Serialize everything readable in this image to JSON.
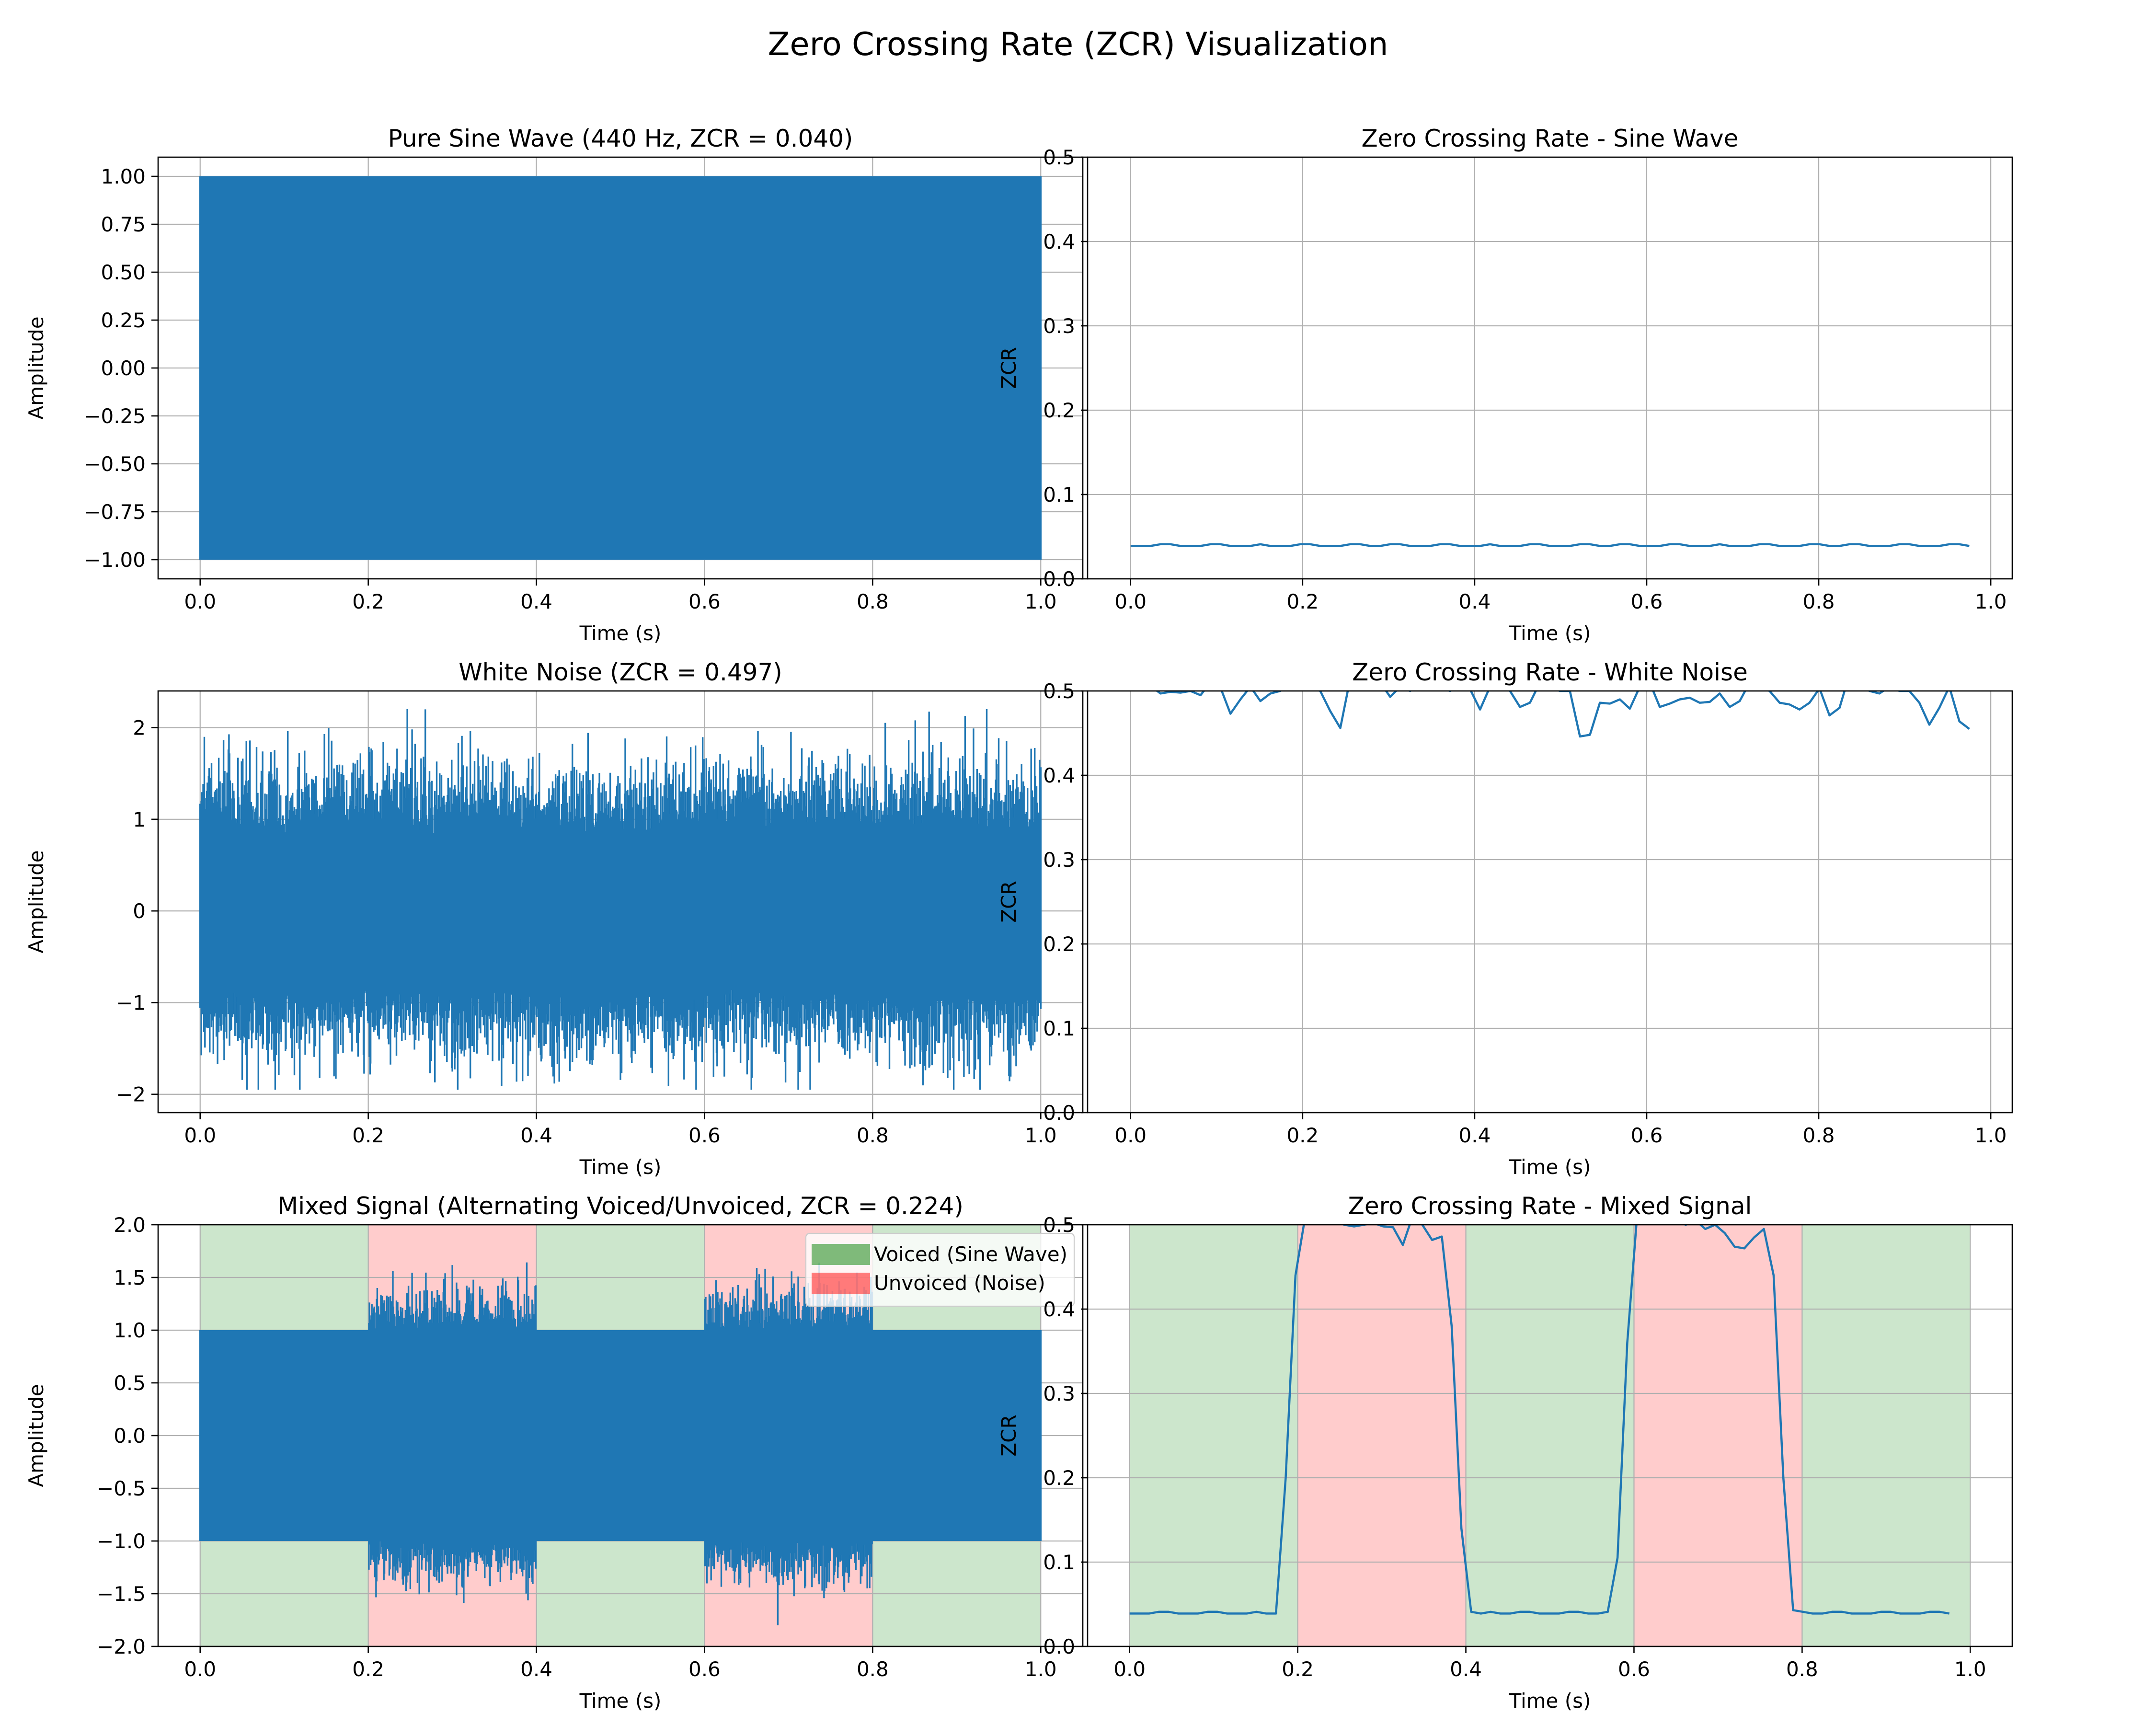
{
  "figure": {
    "title": "Zero Crossing Rate (ZCR) Visualization"
  },
  "colors": {
    "line": "#1f77b4",
    "voiced_band": "#008000",
    "unvoiced_band": "#ff0000",
    "grid": "#b0b0b0"
  },
  "chart_data": [
    {
      "id": "sine-wave",
      "type": "line",
      "title": "Pure Sine Wave (440 Hz, ZCR = 0.040)",
      "xlabel": "Time (s)",
      "ylabel": "Amplitude",
      "xlim": [
        -0.05,
        1.05
      ],
      "ylim": [
        -1.1,
        1.1
      ],
      "xticks": [
        0.0,
        0.2,
        0.4,
        0.6,
        0.8,
        1.0
      ],
      "xtick_labels": [
        "0.0",
        "0.2",
        "0.4",
        "0.6",
        "0.8",
        "1.0"
      ],
      "yticks": [
        1.0,
        0.75,
        0.5,
        0.25,
        0.0,
        -0.25,
        -0.5,
        -0.75,
        -1.0
      ],
      "ytick_labels": [
        "1.00",
        "0.75",
        "0.50",
        "0.25",
        "0.00",
        "−0.25",
        "−0.50",
        "−0.75",
        "−1.00"
      ],
      "grid": true,
      "signal": {
        "kind": "sine",
        "frequency_hz": 440,
        "amplitude": 1.0,
        "duration_s": 1.0
      },
      "series": [
        {
          "x": [
            0.0,
            1.0
          ],
          "y_min": -1.0,
          "y_max": 1.0
        }
      ]
    },
    {
      "id": "zcr-sine",
      "type": "line",
      "title": "Zero Crossing Rate - Sine Wave",
      "xlabel": "Time (s)",
      "ylabel": "ZCR",
      "xlim": [
        -0.05,
        1.025
      ],
      "ylim": [
        0.0,
        0.5
      ],
      "xticks": [
        0.0,
        0.2,
        0.4,
        0.6,
        0.8,
        1.0
      ],
      "xtick_labels": [
        "0.0",
        "0.2",
        "0.4",
        "0.6",
        "0.8",
        "1.0"
      ],
      "yticks": [
        0.0,
        0.1,
        0.2,
        0.3,
        0.4,
        0.5
      ],
      "ytick_labels": [
        "0.0",
        "0.1",
        "0.2",
        "0.3",
        "0.4",
        "0.5"
      ],
      "grid": true,
      "series": [
        {
          "x": [
            0.0,
            0.0116,
            0.0232,
            0.0348,
            0.0464,
            0.058,
            0.0696,
            0.0813,
            0.0929,
            0.1045,
            0.1161,
            0.1277,
            0.1393,
            0.1509,
            0.1625,
            0.1741,
            0.1857,
            0.1973,
            0.2089,
            0.2205,
            0.2322,
            0.2438,
            0.2554,
            0.267,
            0.2786,
            0.2902,
            0.3018,
            0.3134,
            0.325,
            0.3366,
            0.3482,
            0.3598,
            0.3714,
            0.3831,
            0.3947,
            0.4063,
            0.4179,
            0.4295,
            0.4411,
            0.4527,
            0.4643,
            0.4759,
            0.4875,
            0.4991,
            0.5107,
            0.5224,
            0.534,
            0.5456,
            0.5572,
            0.5688,
            0.5804,
            0.592,
            0.6036,
            0.6152,
            0.6268,
            0.6384,
            0.65,
            0.6616,
            0.6733,
            0.6849,
            0.6965,
            0.7081,
            0.7197,
            0.7313,
            0.7429,
            0.7545,
            0.7661,
            0.7777,
            0.7893,
            0.8009,
            0.8125,
            0.8242,
            0.8358,
            0.8474,
            0.859,
            0.8706,
            0.8822,
            0.8938,
            0.9054,
            0.917,
            0.9286,
            0.9402,
            0.9518,
            0.9635,
            0.9751
          ],
          "y": [
            0.039,
            0.039,
            0.039,
            0.041,
            0.041,
            0.039,
            0.039,
            0.039,
            0.041,
            0.041,
            0.039,
            0.039,
            0.039,
            0.041,
            0.039,
            0.039,
            0.039,
            0.041,
            0.041,
            0.039,
            0.039,
            0.039,
            0.041,
            0.041,
            0.039,
            0.039,
            0.041,
            0.041,
            0.039,
            0.039,
            0.039,
            0.041,
            0.041,
            0.039,
            0.039,
            0.039,
            0.041,
            0.039,
            0.039,
            0.039,
            0.041,
            0.041,
            0.039,
            0.039,
            0.039,
            0.041,
            0.041,
            0.039,
            0.039,
            0.041,
            0.041,
            0.039,
            0.039,
            0.039,
            0.041,
            0.041,
            0.039,
            0.039,
            0.039,
            0.041,
            0.039,
            0.039,
            0.039,
            0.041,
            0.041,
            0.039,
            0.039,
            0.039,
            0.041,
            0.041,
            0.039,
            0.039,
            0.041,
            0.041,
            0.039,
            0.039,
            0.039,
            0.041,
            0.041,
            0.039,
            0.039,
            0.039,
            0.041,
            0.041,
            0.039
          ]
        }
      ]
    },
    {
      "id": "white-noise",
      "type": "line",
      "title": "White Noise (ZCR = 0.497)",
      "xlabel": "Time (s)",
      "ylabel": "Amplitude",
      "xlim": [
        -0.05,
        1.05
      ],
      "ylim": [
        -2.2,
        2.4
      ],
      "xticks": [
        0.0,
        0.2,
        0.4,
        0.6,
        0.8,
        1.0
      ],
      "xtick_labels": [
        "0.0",
        "0.2",
        "0.4",
        "0.6",
        "0.8",
        "1.0"
      ],
      "yticks": [
        2,
        1,
        0,
        -1,
        -2
      ],
      "ytick_labels": [
        "2",
        "1",
        "0",
        "−1",
        "−2"
      ],
      "grid": true,
      "signal": {
        "kind": "white-noise",
        "mean": 0.0,
        "std": 0.5,
        "duration_s": 1.0,
        "min": -1.95,
        "max": 2.25
      },
      "series": [
        {
          "x": [
            0.0,
            1.0
          ],
          "y_min": -1.95,
          "y_max": 2.25
        }
      ]
    },
    {
      "id": "zcr-noise",
      "type": "line",
      "title": "Zero Crossing Rate - White Noise",
      "xlabel": "Time (s)",
      "ylabel": "ZCR",
      "xlim": [
        -0.05,
        1.025
      ],
      "ylim": [
        0.0,
        0.5
      ],
      "xticks": [
        0.0,
        0.2,
        0.4,
        0.6,
        0.8,
        1.0
      ],
      "xtick_labels": [
        "0.0",
        "0.2",
        "0.4",
        "0.6",
        "0.8",
        "1.0"
      ],
      "yticks": [
        0.0,
        0.1,
        0.2,
        0.3,
        0.4,
        0.5
      ],
      "ytick_labels": [
        "0.0",
        "0.1",
        "0.2",
        "0.3",
        "0.4",
        "0.5"
      ],
      "grid": true,
      "series": [
        {
          "x": [
            0.0,
            0.0116,
            0.0232,
            0.0348,
            0.0464,
            0.058,
            0.0696,
            0.0813,
            0.0929,
            0.1045,
            0.1161,
            0.1277,
            0.1393,
            0.1509,
            0.1625,
            0.1741,
            0.1857,
            0.1973,
            0.2089,
            0.2205,
            0.2322,
            0.2438,
            0.2554,
            0.267,
            0.2786,
            0.2902,
            0.3018,
            0.3134,
            0.325,
            0.3366,
            0.3482,
            0.3598,
            0.3714,
            0.3831,
            0.3947,
            0.4063,
            0.4179,
            0.4295,
            0.4411,
            0.4527,
            0.4643,
            0.4759,
            0.4875,
            0.4991,
            0.5107,
            0.5224,
            0.534,
            0.5456,
            0.5572,
            0.5688,
            0.5804,
            0.592,
            0.6036,
            0.6152,
            0.6268,
            0.6384,
            0.65,
            0.6616,
            0.6733,
            0.6849,
            0.6965,
            0.7081,
            0.7197,
            0.7313,
            0.7429,
            0.7545,
            0.7661,
            0.7777,
            0.7893,
            0.8009,
            0.8125,
            0.8242,
            0.8358,
            0.8474,
            0.859,
            0.8706,
            0.8822,
            0.8938,
            0.9054,
            0.917,
            0.9286,
            0.9402,
            0.9518,
            0.9635,
            0.9751
          ],
          "y": [
            0.51,
            0.508,
            0.506,
            0.497,
            0.499,
            0.498,
            0.5,
            0.495,
            0.51,
            0.504,
            0.473,
            0.49,
            0.505,
            0.488,
            0.497,
            0.5,
            0.515,
            0.52,
            0.505,
            0.5,
            0.476,
            0.456,
            0.515,
            0.51,
            0.505,
            0.51,
            0.493,
            0.505,
            0.5,
            0.51,
            0.51,
            0.505,
            0.5,
            0.51,
            0.502,
            0.478,
            0.505,
            0.51,
            0.5,
            0.481,
            0.486,
            0.51,
            0.505,
            0.5,
            0.5,
            0.446,
            0.448,
            0.486,
            0.485,
            0.49,
            0.479,
            0.505,
            0.51,
            0.481,
            0.485,
            0.49,
            0.492,
            0.486,
            0.487,
            0.497,
            0.481,
            0.488,
            0.51,
            0.505,
            0.5,
            0.486,
            0.484,
            0.478,
            0.486,
            0.503,
            0.471,
            0.48,
            0.52,
            0.51,
            0.5,
            0.497,
            0.505,
            0.5,
            0.5,
            0.486,
            0.46,
            0.48,
            0.505,
            0.464,
            0.455
          ]
        }
      ]
    },
    {
      "id": "mixed-signal",
      "type": "line",
      "title": "Mixed Signal (Alternating Voiced/Unvoiced, ZCR = 0.224)",
      "xlabel": "Time (s)",
      "ylabel": "Amplitude",
      "xlim": [
        -0.05,
        1.05
      ],
      "ylim": [
        -2.0,
        2.0
      ],
      "xticks": [
        0.0,
        0.2,
        0.4,
        0.6,
        0.8,
        1.0
      ],
      "xtick_labels": [
        "0.0",
        "0.2",
        "0.4",
        "0.6",
        "0.8",
        "1.0"
      ],
      "yticks": [
        2.0,
        1.5,
        1.0,
        0.5,
        0.0,
        -0.5,
        -1.0,
        -1.5,
        -2.0
      ],
      "ytick_labels": [
        "2.0",
        "1.5",
        "1.0",
        "0.5",
        "0.0",
        "−0.5",
        "−1.0",
        "−1.5",
        "−2.0"
      ],
      "grid": true,
      "regions": [
        {
          "start": 0.0,
          "end": 0.2,
          "kind": "voiced"
        },
        {
          "start": 0.2,
          "end": 0.4,
          "kind": "unvoiced"
        },
        {
          "start": 0.4,
          "end": 0.6,
          "kind": "voiced"
        },
        {
          "start": 0.6,
          "end": 0.8,
          "kind": "unvoiced"
        },
        {
          "start": 0.8,
          "end": 1.0,
          "kind": "voiced"
        }
      ],
      "legend": {
        "location": "upper right",
        "entries": [
          {
            "label": "Voiced (Sine Wave)",
            "kind": "voiced"
          },
          {
            "label": "Unvoiced (Noise)",
            "kind": "unvoiced"
          }
        ]
      },
      "signal": {
        "kind": "mixed",
        "sine_amplitude": 1.0,
        "noise_min": -1.8,
        "noise_max": 1.7
      },
      "series": [
        {
          "x": [
            0.0,
            1.0
          ],
          "y_min": -1.8,
          "y_max": 1.7
        }
      ]
    },
    {
      "id": "zcr-mixed",
      "type": "line",
      "title": "Zero Crossing Rate - Mixed Signal",
      "xlabel": "Time (s)",
      "ylabel": "ZCR",
      "xlim": [
        -0.05,
        1.05
      ],
      "ylim": [
        0.0,
        0.5
      ],
      "xticks": [
        0.0,
        0.2,
        0.4,
        0.6,
        0.8,
        1.0
      ],
      "xtick_labels": [
        "0.0",
        "0.2",
        "0.4",
        "0.6",
        "0.8",
        "1.0"
      ],
      "yticks": [
        0.0,
        0.1,
        0.2,
        0.3,
        0.4,
        0.5
      ],
      "ytick_labels": [
        "0.0",
        "0.1",
        "0.2",
        "0.3",
        "0.4",
        "0.5"
      ],
      "grid": true,
      "regions": [
        {
          "start": 0.0,
          "end": 0.2,
          "kind": "voiced"
        },
        {
          "start": 0.2,
          "end": 0.4,
          "kind": "unvoiced"
        },
        {
          "start": 0.4,
          "end": 0.6,
          "kind": "voiced"
        },
        {
          "start": 0.6,
          "end": 0.8,
          "kind": "unvoiced"
        },
        {
          "start": 0.8,
          "end": 1.0,
          "kind": "voiced"
        }
      ],
      "series": [
        {
          "x": [
            0.0,
            0.0116,
            0.0232,
            0.0348,
            0.0464,
            0.058,
            0.0696,
            0.0813,
            0.0929,
            0.1045,
            0.1161,
            0.1277,
            0.1393,
            0.1509,
            0.1625,
            0.1741,
            0.1857,
            0.1973,
            0.2089,
            0.2205,
            0.2322,
            0.2438,
            0.2554,
            0.267,
            0.2786,
            0.2902,
            0.3018,
            0.3134,
            0.325,
            0.3366,
            0.3482,
            0.3598,
            0.3714,
            0.3831,
            0.3947,
            0.4063,
            0.4179,
            0.4295,
            0.4411,
            0.4527,
            0.4643,
            0.4759,
            0.4875,
            0.4991,
            0.5107,
            0.5224,
            0.534,
            0.5456,
            0.5572,
            0.5688,
            0.5804,
            0.592,
            0.6036,
            0.6152,
            0.6268,
            0.6384,
            0.65,
            0.6616,
            0.6733,
            0.6849,
            0.6965,
            0.7081,
            0.7197,
            0.7313,
            0.7429,
            0.7545,
            0.7661,
            0.7777,
            0.7893,
            0.8009,
            0.8125,
            0.8242,
            0.8358,
            0.8474,
            0.859,
            0.8706,
            0.8822,
            0.8938,
            0.9054,
            0.917,
            0.9286,
            0.9402,
            0.9518,
            0.9635,
            0.9751
          ],
          "y": [
            0.039,
            0.039,
            0.039,
            0.041,
            0.041,
            0.039,
            0.039,
            0.039,
            0.041,
            0.041,
            0.039,
            0.039,
            0.039,
            0.041,
            0.039,
            0.039,
            0.2,
            0.44,
            0.51,
            0.52,
            0.515,
            0.505,
            0.5,
            0.498,
            0.5,
            0.502,
            0.498,
            0.497,
            0.476,
            0.51,
            0.5,
            0.482,
            0.486,
            0.38,
            0.14,
            0.041,
            0.039,
            0.041,
            0.039,
            0.039,
            0.041,
            0.041,
            0.039,
            0.039,
            0.039,
            0.041,
            0.041,
            0.039,
            0.039,
            0.041,
            0.105,
            0.36,
            0.51,
            0.515,
            0.505,
            0.51,
            0.505,
            0.5,
            0.505,
            0.495,
            0.5,
            0.49,
            0.474,
            0.472,
            0.485,
            0.495,
            0.44,
            0.2,
            0.043,
            0.041,
            0.039,
            0.039,
            0.041,
            0.041,
            0.039,
            0.039,
            0.039,
            0.041,
            0.041,
            0.039,
            0.039,
            0.039,
            0.041,
            0.041,
            0.039
          ]
        }
      ]
    }
  ]
}
